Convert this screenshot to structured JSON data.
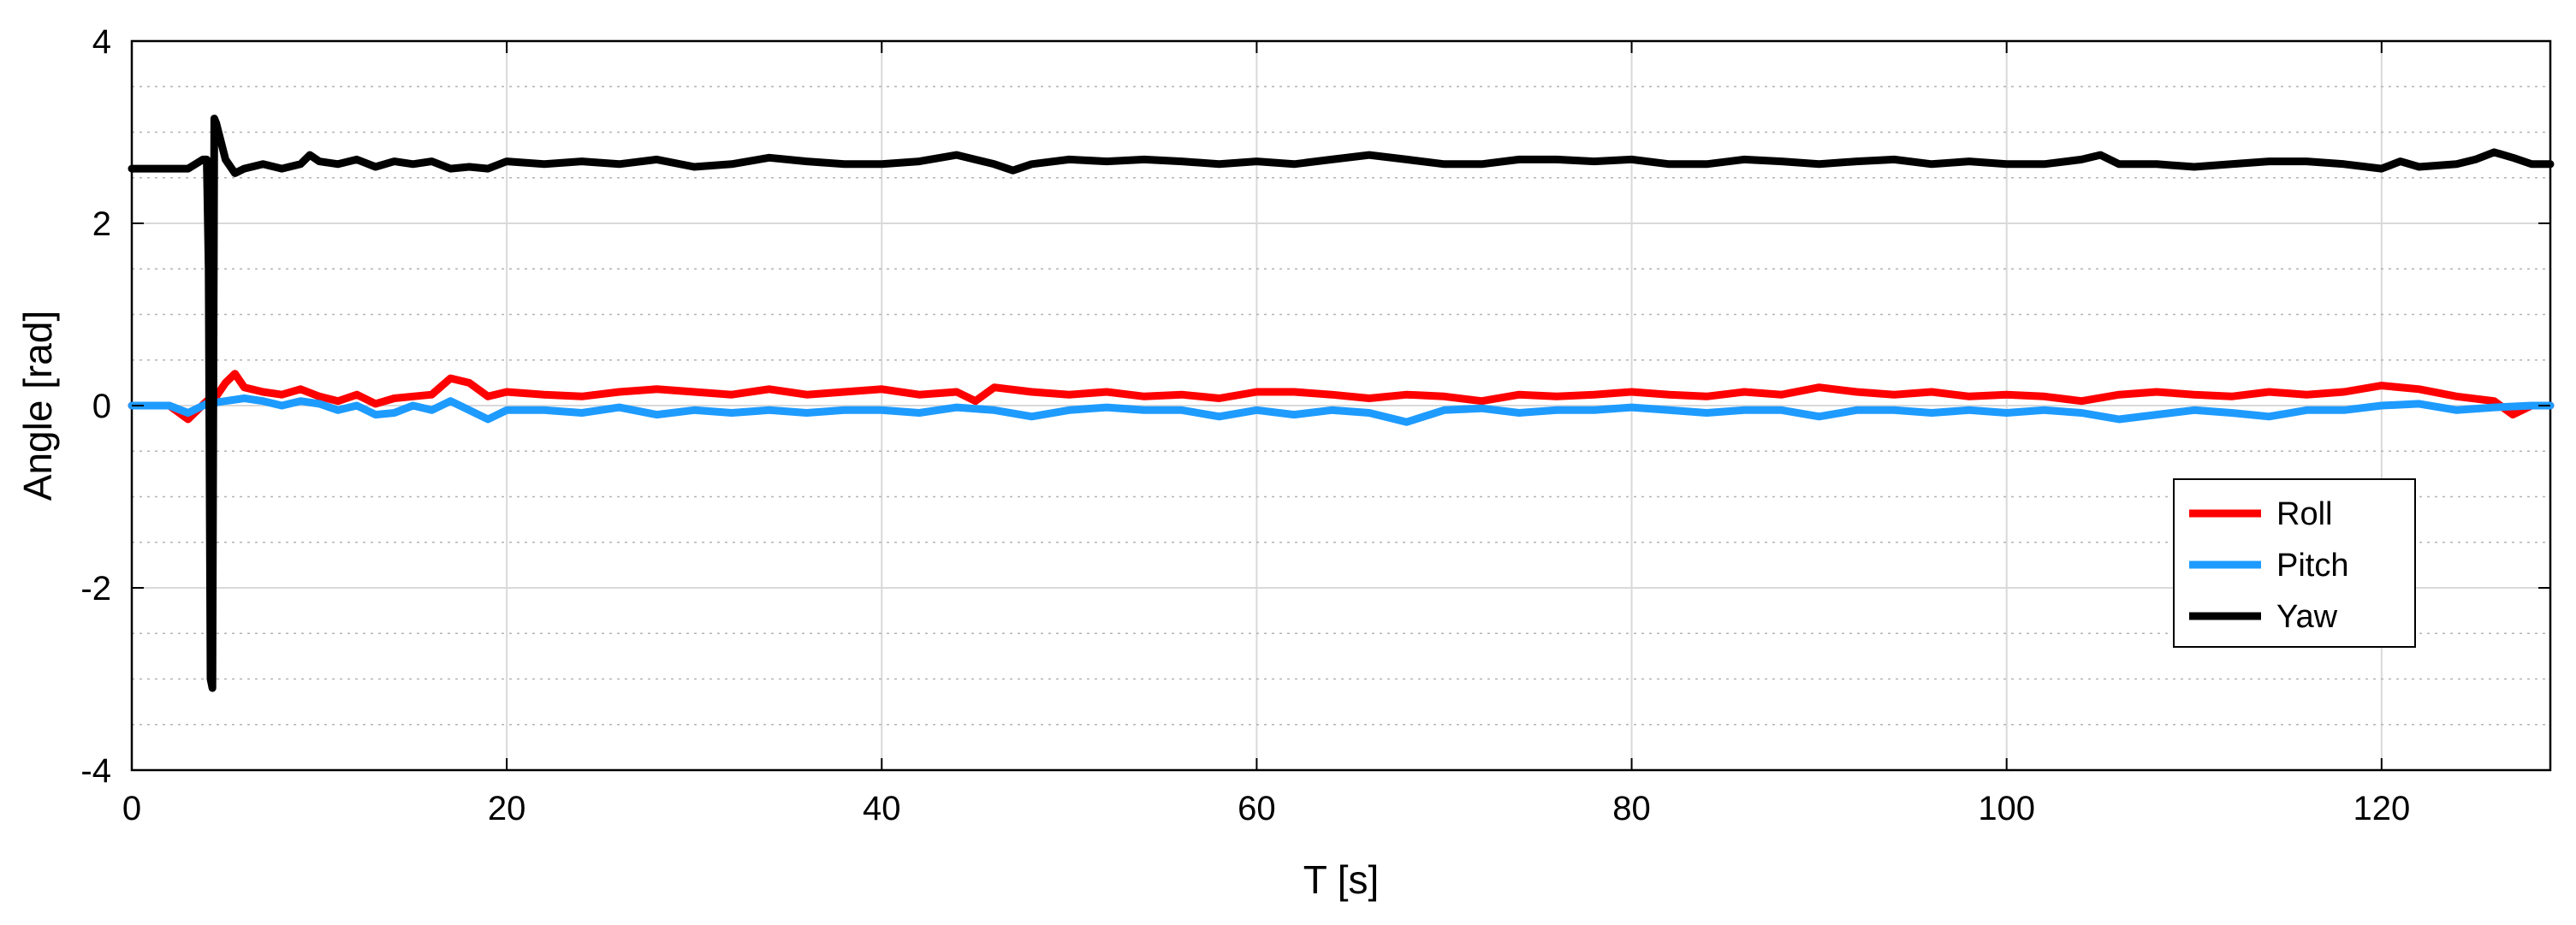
{
  "chart_data": {
    "type": "line",
    "title": "",
    "xlabel": "T [s]",
    "ylabel": "Angle [rad]",
    "xlim": [
      0,
      129
    ],
    "ylim": [
      -4,
      4
    ],
    "x_ticks": [
      0,
      20,
      40,
      60,
      80,
      100,
      120
    ],
    "y_ticks": [
      -4,
      -2,
      0,
      2,
      4
    ],
    "y_minor_ticks": [
      -3.5,
      -3,
      -2.5,
      -1.5,
      -1,
      -0.5,
      0.5,
      1,
      1.5,
      2.5,
      3,
      3.5
    ],
    "grid": true,
    "legend_position": "lower-right",
    "series": [
      {
        "name": "Roll",
        "color": "#ff0000",
        "x": [
          0,
          2,
          3,
          4,
          4.5,
          5,
          5.5,
          6,
          7,
          8,
          9,
          10,
          11,
          12,
          13,
          14,
          15,
          16,
          17,
          18,
          19,
          20,
          22,
          24,
          26,
          28,
          30,
          32,
          34,
          36,
          38,
          40,
          42,
          44,
          45,
          46,
          48,
          50,
          52,
          54,
          56,
          58,
          60,
          62,
          64,
          66,
          68,
          70,
          72,
          74,
          76,
          78,
          80,
          82,
          84,
          86,
          88,
          90,
          92,
          94,
          96,
          98,
          100,
          102,
          104,
          106,
          108,
          110,
          112,
          114,
          116,
          118,
          120,
          122,
          124,
          126,
          127,
          128,
          129
        ],
        "y": [
          0.0,
          0.0,
          -0.15,
          0.05,
          0.1,
          0.25,
          0.35,
          0.2,
          0.15,
          0.12,
          0.18,
          0.1,
          0.05,
          0.12,
          0.02,
          0.08,
          0.1,
          0.12,
          0.3,
          0.25,
          0.1,
          0.15,
          0.12,
          0.1,
          0.15,
          0.18,
          0.15,
          0.12,
          0.18,
          0.12,
          0.15,
          0.18,
          0.12,
          0.15,
          0.05,
          0.2,
          0.15,
          0.12,
          0.15,
          0.1,
          0.12,
          0.08,
          0.15,
          0.15,
          0.12,
          0.08,
          0.12,
          0.1,
          0.05,
          0.12,
          0.1,
          0.12,
          0.15,
          0.12,
          0.1,
          0.15,
          0.12,
          0.2,
          0.15,
          0.12,
          0.15,
          0.1,
          0.12,
          0.1,
          0.05,
          0.12,
          0.15,
          0.12,
          0.1,
          0.15,
          0.12,
          0.15,
          0.22,
          0.18,
          0.1,
          0.05,
          -0.1,
          0.0,
          0.0
        ],
        "visible_y_range": [
          -0.18,
          0.38
        ]
      },
      {
        "name": "Pitch",
        "color": "#1e9bff",
        "x": [
          0,
          2,
          3,
          4,
          5,
          6,
          7,
          8,
          9,
          10,
          11,
          12,
          13,
          14,
          15,
          16,
          17,
          18,
          19,
          20,
          22,
          24,
          26,
          28,
          30,
          32,
          34,
          36,
          38,
          40,
          42,
          44,
          46,
          48,
          50,
          52,
          54,
          56,
          58,
          60,
          62,
          64,
          66,
          68,
          70,
          72,
          74,
          76,
          78,
          80,
          82,
          84,
          86,
          88,
          90,
          92,
          94,
          96,
          98,
          100,
          102,
          104,
          106,
          108,
          110,
          112,
          114,
          116,
          118,
          120,
          122,
          124,
          126,
          128,
          129
        ],
        "y": [
          0.0,
          0.0,
          -0.08,
          0.02,
          0.05,
          0.08,
          0.05,
          0.0,
          0.05,
          0.02,
          -0.05,
          0.0,
          -0.1,
          -0.08,
          0.0,
          -0.05,
          0.05,
          -0.05,
          -0.15,
          -0.05,
          -0.05,
          -0.08,
          -0.02,
          -0.1,
          -0.05,
          -0.08,
          -0.05,
          -0.08,
          -0.05,
          -0.05,
          -0.08,
          -0.02,
          -0.05,
          -0.12,
          -0.05,
          -0.02,
          -0.05,
          -0.05,
          -0.12,
          -0.05,
          -0.1,
          -0.05,
          -0.08,
          -0.18,
          -0.05,
          -0.03,
          -0.08,
          -0.05,
          -0.05,
          -0.02,
          -0.05,
          -0.08,
          -0.05,
          -0.05,
          -0.12,
          -0.05,
          -0.05,
          -0.08,
          -0.05,
          -0.08,
          -0.05,
          -0.08,
          -0.15,
          -0.1,
          -0.05,
          -0.08,
          -0.12,
          -0.05,
          -0.05,
          0.0,
          0.02,
          -0.05,
          -0.02,
          0.0,
          0.0
        ],
        "visible_y_range": [
          -0.2,
          0.1
        ]
      },
      {
        "name": "Yaw",
        "color": "#000000",
        "x": [
          0,
          2,
          3,
          3.8,
          4.0,
          4.1,
          4.2,
          4.3,
          4.4,
          4.5,
          5,
          5.5,
          6,
          7,
          8,
          9,
          9.5,
          10,
          11,
          12,
          13,
          14,
          15,
          16,
          17,
          18,
          19,
          20,
          22,
          24,
          26,
          28,
          30,
          32,
          34,
          36,
          38,
          40,
          42,
          44,
          46,
          47,
          48,
          50,
          52,
          54,
          56,
          58,
          60,
          62,
          64,
          66,
          68,
          70,
          72,
          74,
          76,
          78,
          80,
          82,
          84,
          86,
          88,
          90,
          92,
          94,
          96,
          98,
          100,
          102,
          104,
          105,
          106,
          108,
          110,
          112,
          114,
          116,
          118,
          120,
          121,
          122,
          124,
          125,
          126,
          126.5,
          127,
          128,
          129
        ],
        "y": [
          2.6,
          2.6,
          2.6,
          2.7,
          2.7,
          1.5,
          -3.0,
          -3.1,
          3.15,
          3.1,
          2.7,
          2.55,
          2.6,
          2.65,
          2.6,
          2.65,
          2.75,
          2.68,
          2.65,
          2.7,
          2.62,
          2.68,
          2.65,
          2.68,
          2.6,
          2.62,
          2.6,
          2.68,
          2.65,
          2.68,
          2.65,
          2.7,
          2.62,
          2.65,
          2.72,
          2.68,
          2.65,
          2.65,
          2.68,
          2.75,
          2.65,
          2.58,
          2.65,
          2.7,
          2.68,
          2.7,
          2.68,
          2.65,
          2.68,
          2.65,
          2.7,
          2.75,
          2.7,
          2.65,
          2.65,
          2.7,
          2.7,
          2.68,
          2.7,
          2.65,
          2.65,
          2.7,
          2.68,
          2.65,
          2.68,
          2.7,
          2.65,
          2.68,
          2.65,
          2.65,
          2.7,
          2.75,
          2.65,
          2.65,
          2.62,
          2.65,
          2.68,
          2.68,
          2.65,
          2.6,
          2.68,
          2.62,
          2.65,
          2.7,
          2.78,
          2.75,
          2.72,
          2.65,
          2.65
        ],
        "visible_y_range": [
          -3.15,
          3.18
        ]
      }
    ]
  }
}
